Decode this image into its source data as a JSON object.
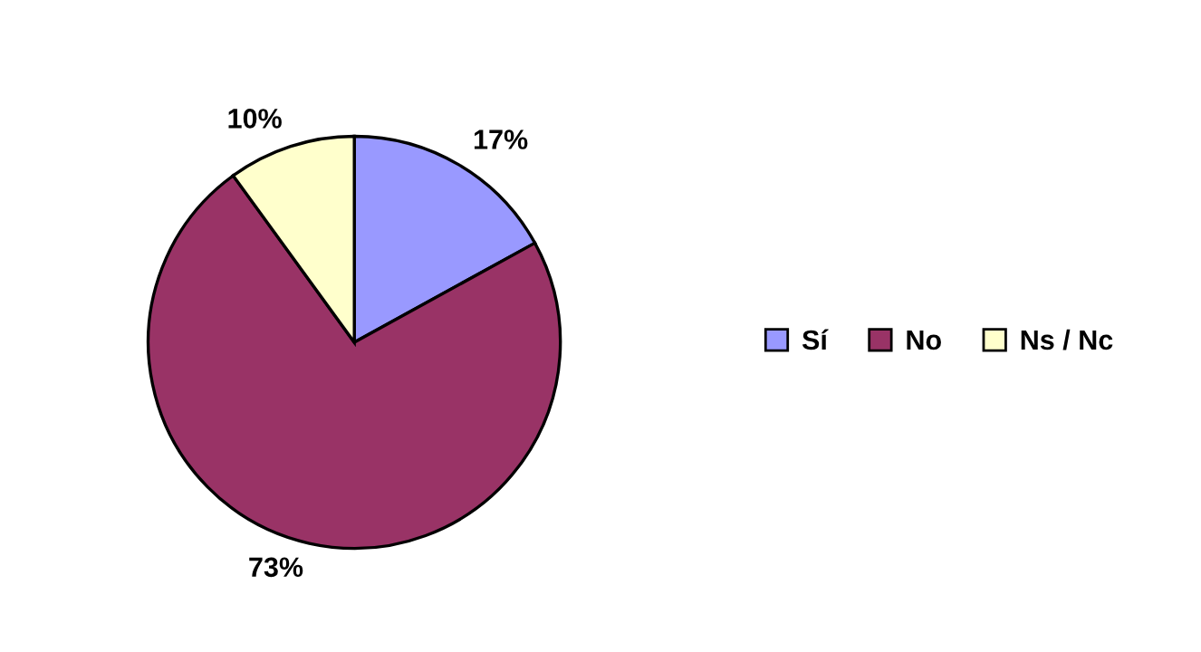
{
  "chart_data": {
    "type": "pie",
    "categories": [
      "Sí",
      "No",
      "Ns / Nc"
    ],
    "values": [
      17,
      73,
      10
    ],
    "colors": [
      "#9999ff",
      "#993366",
      "#ffffcc"
    ],
    "value_labels": [
      "17%",
      "73%",
      "10%"
    ],
    "legend": "right"
  }
}
